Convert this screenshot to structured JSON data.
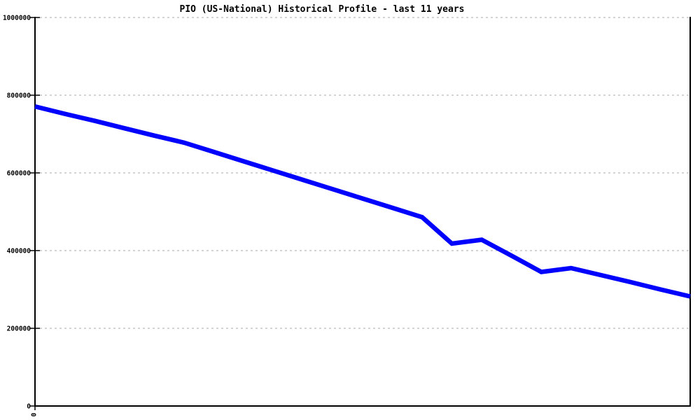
{
  "chart_data": {
    "type": "line",
    "title": "PIO (US-National) Historical Profile - last 11 years",
    "xlabel": "",
    "ylabel": "",
    "ylim": [
      0,
      1000000
    ],
    "y_ticks": [
      0,
      200000,
      400000,
      600000,
      800000,
      1000000
    ],
    "y_tick_labels": [
      "0",
      "200000",
      "400000",
      "600000",
      "800000",
      "1000000"
    ],
    "x_tick_labels": [
      "0"
    ],
    "grid": "horizontal-dashed",
    "legend": "none",
    "num_points": 23,
    "series": [
      {
        "name": "PIO (US-National)",
        "color": "#0000ff",
        "values": [
          771000,
          752000,
          734000,
          715000,
          696000,
          678000,
          654000,
          630000,
          606000,
          582000,
          558000,
          534000,
          510000,
          486000,
          418000,
          428000,
          387000,
          345000,
          355000,
          337000,
          319000,
          300000,
          282000
        ]
      }
    ],
    "colors": {
      "line": "#0000ff",
      "grid": "#aaaaaa",
      "axis": "#000000",
      "background": "#ffffff",
      "text": "#000000"
    }
  }
}
